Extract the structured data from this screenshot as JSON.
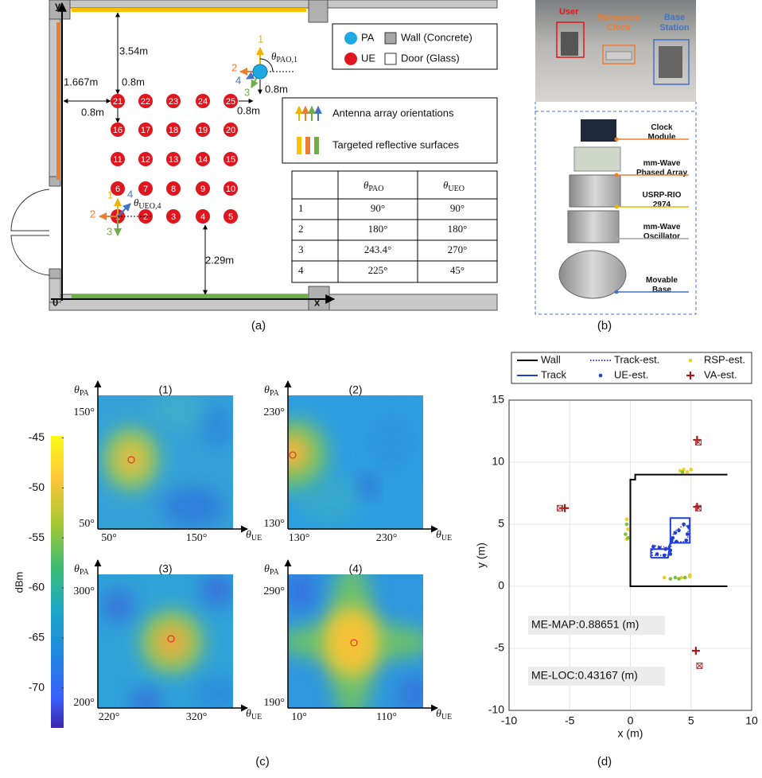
{
  "panel_a": {
    "axis_y": "y",
    "origin": "0",
    "axis_x": "x",
    "ue_labels": [
      "1",
      "2",
      "3",
      "4",
      "5",
      "6",
      "7",
      "8",
      "9",
      "10",
      "11",
      "12",
      "13",
      "14",
      "15",
      "16",
      "17",
      "18",
      "19",
      "20",
      "21",
      "22",
      "23",
      "24",
      "25"
    ],
    "dimensions": [
      "3.54m",
      "1.667m",
      "0.8m",
      "0.8m",
      "0.8m",
      "0.8m",
      "2.29m"
    ],
    "angle_pa": {
      "sym": "θ",
      "sub": "PAO,1"
    },
    "angle_ue": {
      "sym": "θ",
      "sub": "UEO,4"
    },
    "orientation_labels": [
      "1",
      "2",
      "3",
      "4"
    ],
    "legend": [
      "PA",
      "UE",
      "Wall (Concrete)",
      "Door (Glass)"
    ],
    "legend2": [
      "Antenna array orientations",
      "Targeted reflective surfaces"
    ],
    "table": {
      "header": [
        {
          "sym": "θ",
          "sub": "PAO"
        },
        {
          "sym": "θ",
          "sub": "UEO"
        }
      ],
      "rows": [
        [
          "1",
          "90°",
          "90°"
        ],
        [
          "2",
          "180°",
          "180°"
        ],
        [
          "3",
          "243.4°",
          "270°"
        ],
        [
          "4",
          "225°",
          "45°"
        ]
      ]
    }
  },
  "panel_b": {
    "photo_labels": [
      [
        "User"
      ],
      [
        "Reference",
        "Clock"
      ],
      [
        "Base",
        "Station"
      ]
    ],
    "components": [
      [
        "Clock",
        "Module"
      ],
      [
        "mm-Wave",
        "Phased Array"
      ],
      [
        "USRP-RIO",
        "2974"
      ],
      [
        "mm-Wave",
        "Oscillator"
      ],
      [
        "Movable",
        "Base"
      ]
    ]
  },
  "panel_c": {
    "colorbar": {
      "label": "dBm",
      "lim": [
        -74,
        -44.8
      ],
      "ticks": [
        -45,
        -50,
        -55,
        -60,
        -65,
        -70
      ]
    },
    "plots": [
      {
        "title": "(1)",
        "ylabel": {
          "sym": "θ",
          "sub": "PA"
        },
        "xlabel": {
          "sym": "θ",
          "sub": "UE"
        },
        "yticks": [
          "150°",
          "50°"
        ],
        "xticks": [
          "50°",
          "150°"
        ]
      },
      {
        "title": "(2)",
        "ylabel": {
          "sym": "θ",
          "sub": "PA"
        },
        "xlabel": {
          "sym": "θ",
          "sub": "UE"
        },
        "yticks": [
          "230°",
          "130°"
        ],
        "xticks": [
          "130°",
          "230°"
        ]
      },
      {
        "title": "(3)",
        "ylabel": {
          "sym": "θ",
          "sub": "PA"
        },
        "xlabel": {
          "sym": "θ",
          "sub": "UE"
        },
        "yticks": [
          "300°",
          "200°"
        ],
        "xticks": [
          "220°",
          "320°"
        ]
      },
      {
        "title": "(4)",
        "ylabel": {
          "sym": "θ",
          "sub": "PA"
        },
        "xlabel": {
          "sym": "θ",
          "sub": "UE"
        },
        "yticks": [
          "290°",
          "190°"
        ],
        "xticks": [
          "10°",
          "110°"
        ]
      }
    ]
  },
  "chart_data": {
    "type": "scatter",
    "xlabel": "x (m)",
    "ylabel": "y (m)",
    "xlim": [
      -10,
      10
    ],
    "ylim": [
      -10,
      15
    ],
    "xticks": [
      -10,
      -5,
      0,
      5,
      10
    ],
    "yticks": [
      -10,
      -5,
      0,
      5,
      10,
      15
    ],
    "grid": true,
    "legend": "top",
    "annotations": [
      "ME-MAP:0.88651 (m)",
      "ME-LOC:0.43167 (m)"
    ],
    "series": [
      {
        "name": "Wall",
        "color": "#000000",
        "style": "line",
        "x": [
          8,
          0,
          0,
          0.4,
          0.4,
          8
        ],
        "values": [
          0,
          0,
          8.6,
          8.6,
          9,
          9
        ]
      },
      {
        "name": "Track",
        "color": "#1f3fd6",
        "style": "line",
        "x": [
          1.7,
          3.1,
          3.3,
          4.9,
          4.9,
          3.3,
          3.3,
          3.1,
          1.7,
          1.7
        ],
        "values": [
          2.3,
          2.3,
          3.5,
          3.5,
          5.5,
          5.5,
          3.5,
          3.0,
          3.0,
          2.3
        ]
      },
      {
        "name": "Track-est.",
        "color": "#3b3bbf",
        "style": "dotted",
        "x": [
          1.8,
          2.6,
          3.2,
          3.4,
          3.6,
          4.2,
          4.8,
          4.7,
          3.4,
          3.3,
          2.9,
          1.8,
          1.8
        ],
        "values": [
          3.3,
          3.2,
          3.1,
          3.8,
          4.4,
          4.8,
          4.9,
          3.6,
          3.6,
          2.7,
          2.5,
          2.5,
          3.3
        ]
      },
      {
        "name": "UE-est.",
        "color": "#1f3fd6",
        "style": "dot",
        "x": [
          1.9,
          2.4,
          2.9,
          3.3,
          3.5,
          3.7,
          4.0,
          4.4,
          4.8,
          4.7,
          4.6,
          3.8,
          3.4,
          3.3,
          2.8,
          2.2
        ],
        "values": [
          3.2,
          3.1,
          3.0,
          2.9,
          3.9,
          4.3,
          4.5,
          5.0,
          4.8,
          4.2,
          3.7,
          3.6,
          3.7,
          2.6,
          2.5,
          2.6
        ]
      },
      {
        "name": "RSP-est.",
        "color": "#edcf1f",
        "style": "dot",
        "x": [
          -0.3,
          -0.2,
          -0.3,
          4.1,
          4.4,
          4.7,
          5.0,
          4.9,
          2.8,
          4.2,
          4.9
        ],
        "values": [
          5.4,
          4.6,
          3.8,
          9.3,
          9.4,
          9.2,
          9.4,
          0.8,
          0.7,
          0.7,
          0.9
        ]
      },
      {
        "name": "VA-est.",
        "color": "#a01d1d",
        "style": "plus",
        "x": [
          5.5,
          5.5,
          -5.4,
          5.4
        ],
        "values": [
          11.8,
          6.4,
          6.3,
          -5.2
        ]
      },
      {
        "color": "#7fbf3f",
        "style": "dot",
        "x": [
          -0.4,
          -0.3,
          -0.2,
          3.3,
          3.7,
          4.0,
          4.5,
          4.3
        ],
        "values": [
          4.2,
          5.0,
          3.9,
          0.6,
          0.7,
          0.6,
          0.7,
          9.2
        ]
      },
      {
        "color": "#b03030",
        "style": "boxx",
        "x": [
          5.6,
          5.6,
          -5.8,
          5.7
        ],
        "values": [
          11.6,
          6.3,
          6.3,
          -6.4
        ]
      }
    ]
  },
  "captions": [
    "(a)",
    "(b)",
    "(c)",
    "(d)"
  ]
}
